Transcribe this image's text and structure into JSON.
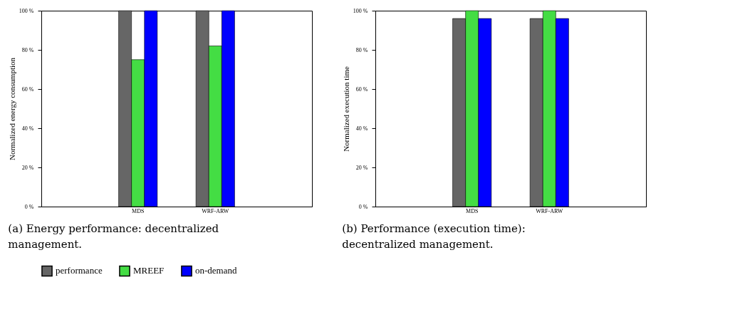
{
  "chart_data": [
    {
      "type": "bar",
      "ylabel": "Normalized energy consumption",
      "categories": [
        "MDS",
        "WRF-ARW"
      ],
      "series": [
        {
          "name": "performance",
          "color": "#666666",
          "values": [
            100,
            100
          ]
        },
        {
          "name": "MREEF",
          "color": "#44dd44",
          "values": [
            75,
            82
          ]
        },
        {
          "name": "on-demand",
          "color": "#0000ff",
          "values": [
            100,
            100
          ]
        }
      ],
      "ylim": [
        0,
        100
      ],
      "yticks": [
        {
          "value": 0,
          "label": "0 %"
        },
        {
          "value": 20,
          "label": "20 %"
        },
        {
          "value": 40,
          "label": "40 %"
        },
        {
          "value": 60,
          "label": "60 %"
        },
        {
          "value": 80,
          "label": "80 %"
        },
        {
          "value": 100,
          "label": "100 %"
        }
      ],
      "grid": false,
      "legend": "bottom",
      "annotations": [
        "(a) Energy performance: decentralized management."
      ]
    },
    {
      "type": "bar",
      "ylabel": "Normalized execution time",
      "categories": [
        "MDS",
        "WRF-ARW"
      ],
      "series": [
        {
          "name": "performance",
          "color": "#666666",
          "values": [
            96,
            96
          ]
        },
        {
          "name": "MREEF",
          "color": "#44dd44",
          "values": [
            100,
            100
          ]
        },
        {
          "name": "on-demand",
          "color": "#0000ff",
          "values": [
            96,
            96
          ]
        }
      ],
      "ylim": [
        0,
        100
      ],
      "yticks": [
        {
          "value": 0,
          "label": "0 %"
        },
        {
          "value": 20,
          "label": "20 %"
        },
        {
          "value": 40,
          "label": "40 %"
        },
        {
          "value": 60,
          "label": "60 %"
        },
        {
          "value": 80,
          "label": "80 %"
        },
        {
          "value": 100,
          "label": "100 %"
        }
      ],
      "grid": false,
      "legend": "bottom",
      "annotations": [
        "(b) Performance (execution time): decentralized management."
      ]
    }
  ]
}
